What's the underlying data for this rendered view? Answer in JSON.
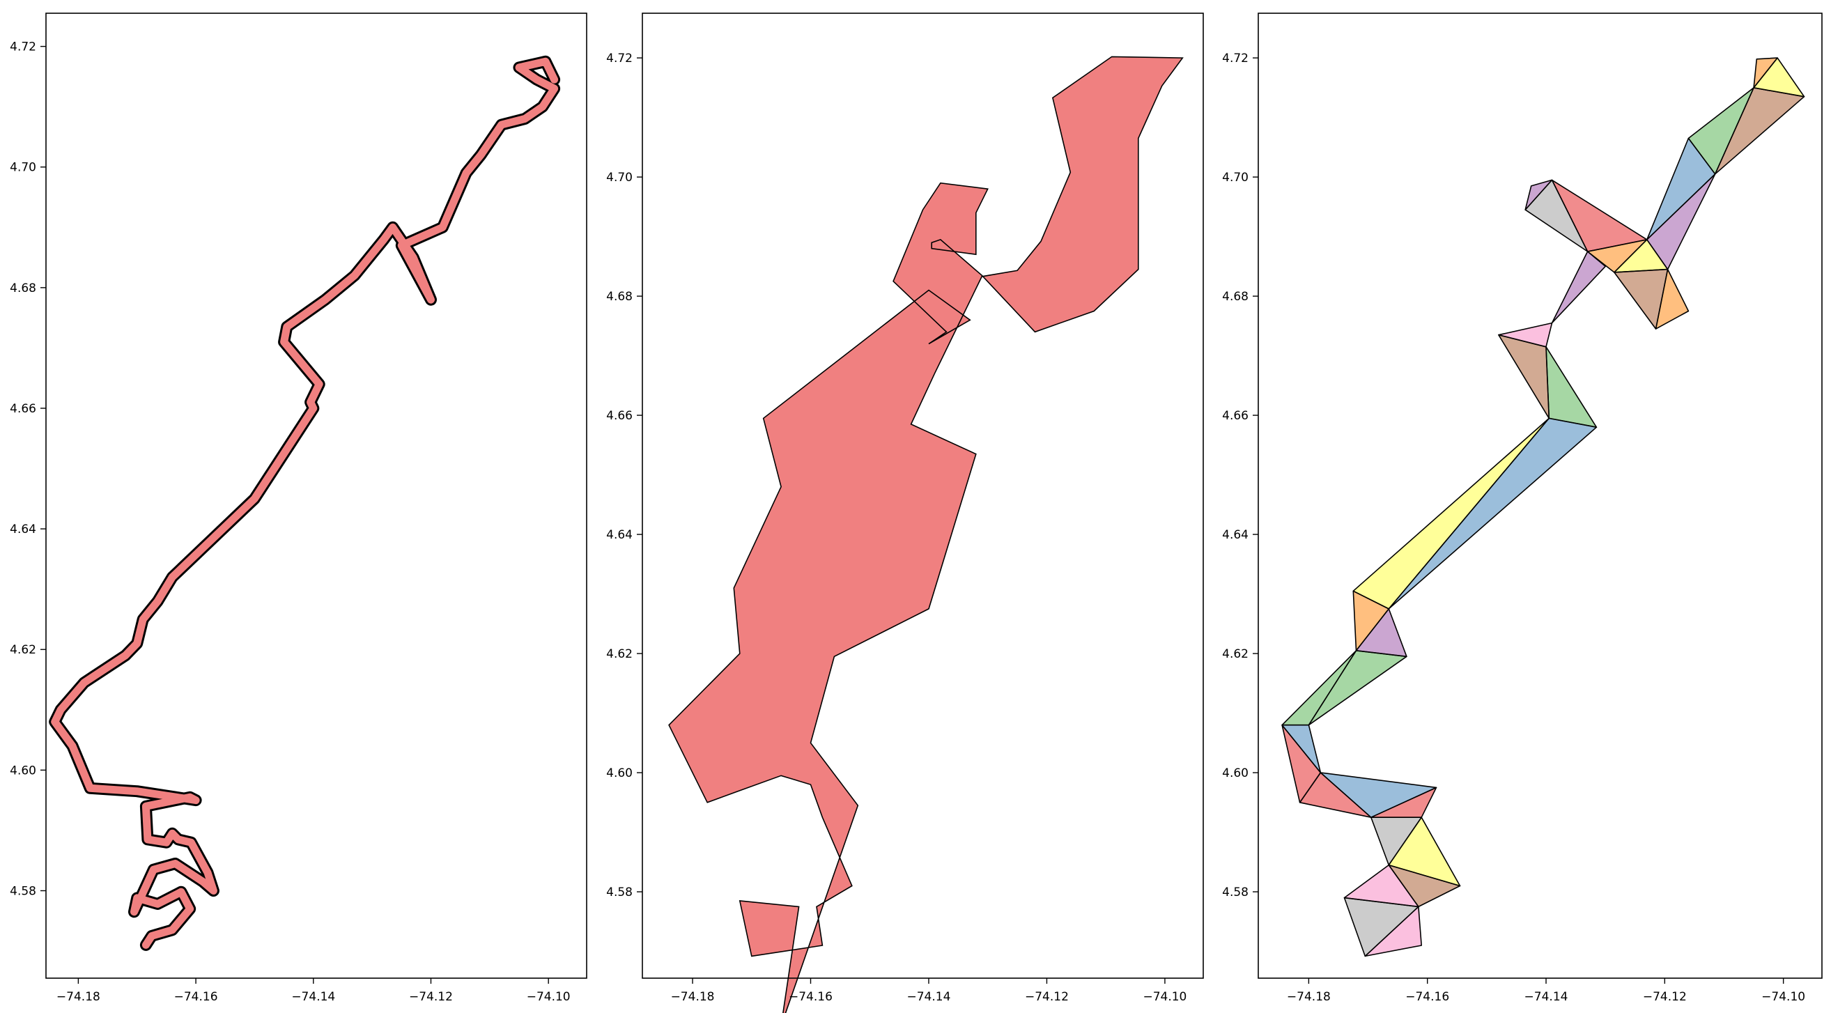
{
  "chart_data": [
    {
      "type": "line",
      "title": "",
      "xlabel": "",
      "ylabel": "",
      "xlim": [
        -74.1855,
        -74.0935
      ],
      "ylim": [
        4.5655,
        4.7255
      ],
      "xticks": [
        -74.18,
        -74.16,
        -74.14,
        -74.12,
        -74.1
      ],
      "xtick_labels": [
        "−74.18",
        "−74.16",
        "−74.14",
        "−74.12",
        "−74.10"
      ],
      "yticks": [
        4.58,
        4.6,
        4.62,
        4.64,
        4.66,
        4.68,
        4.7,
        4.72
      ],
      "ytick_labels": [
        "4.58",
        "4.60",
        "4.62",
        "4.64",
        "4.66",
        "4.68",
        "4.70",
        "4.72"
      ],
      "grid": false,
      "legend": "none",
      "colors": {
        "fill": "#f08080",
        "edge": "#000000"
      },
      "series": [
        {
          "x": [
            -74.1685,
            -74.1675,
            -74.164,
            -74.161,
            -74.1625,
            -74.1665,
            -74.17,
            -74.1705,
            -74.1672,
            -74.1635,
            -74.1588,
            -74.157,
            -74.158,
            -74.1608,
            -74.163,
            -74.164,
            -74.165,
            -74.1682,
            -74.1685,
            -74.161,
            -74.16,
            -74.17,
            -74.178,
            -74.181,
            -74.184,
            -74.183,
            -74.179,
            -74.172,
            -74.17,
            -74.169,
            -74.1665,
            -74.164,
            -74.15,
            -74.14,
            -74.1405,
            -74.139,
            -74.145,
            -74.1445,
            -74.138,
            -74.133,
            -74.128,
            -74.1265,
            -74.123,
            -74.12,
            -74.125,
            -74.118,
            -74.114,
            -74.1115,
            -74.108,
            -74.104,
            -74.101,
            -74.099,
            -74.102,
            -74.105,
            -74.1005,
            -74.099
          ],
          "y": [
            4.571,
            4.5725,
            4.5735,
            4.577,
            4.5798,
            4.5778,
            4.5788,
            4.5765,
            4.5835,
            4.5845,
            4.5815,
            4.58,
            4.583,
            4.588,
            4.5885,
            4.5895,
            4.588,
            4.5885,
            4.594,
            4.5955,
            4.595,
            4.5965,
            4.597,
            4.604,
            4.608,
            4.61,
            4.6145,
            4.619,
            4.621,
            4.625,
            4.628,
            4.632,
            4.645,
            4.66,
            4.661,
            4.664,
            4.671,
            4.6735,
            4.678,
            4.682,
            4.688,
            4.69,
            4.685,
            4.678,
            4.687,
            4.69,
            4.699,
            4.702,
            4.707,
            4.708,
            4.71,
            4.713,
            4.7145,
            4.7165,
            4.7175,
            4.7145
          ]
        }
      ]
    },
    {
      "type": "area",
      "title": "",
      "xlabel": "",
      "ylabel": "",
      "xlim": [
        -74.1885,
        -74.0935
      ],
      "ylim": [
        4.5655,
        4.7275
      ],
      "xticks": [
        -74.18,
        -74.16,
        -74.14,
        -74.12,
        -74.1
      ],
      "xtick_labels": [
        "−74.18",
        "−74.16",
        "−74.14",
        "−74.12",
        "−74.10"
      ],
      "yticks": [
        4.58,
        4.6,
        4.62,
        4.64,
        4.66,
        4.68,
        4.7,
        4.72
      ],
      "ytick_labels": [
        "4.58",
        "4.60",
        "4.62",
        "4.64",
        "4.66",
        "4.68",
        "4.70",
        "4.72"
      ],
      "grid": false,
      "legend": "none",
      "colors": {
        "fill": "#f08080",
        "edge": "#000000"
      },
      "series": [
        {
          "x": [
            -74.17,
            -74.158,
            -74.159,
            -74.153,
            -74.158,
            -74.16,
            -74.165,
            -74.172,
            -74.1775,
            -74.184,
            -74.172,
            -74.173,
            -74.165,
            -74.168,
            -74.14,
            -74.133,
            -74.14,
            -74.137,
            -74.146,
            -74.141,
            -74.138,
            -74.13,
            -74.132,
            -74.132,
            -74.1395,
            -74.1395,
            -74.138,
            -74.131,
            -74.122,
            -74.112,
            -74.1045,
            -74.1045,
            -74.1005,
            -74.097,
            -74.109,
            -74.119,
            -74.116,
            -74.121,
            -74.125,
            -74.131,
            -74.139,
            -74.143,
            -74.132,
            -74.14,
            -74.156,
            -74.16,
            -74.152,
            -74.165,
            -74.162,
            -74.172
          ],
          "y": [
            4.5692,
            4.571,
            4.5775,
            4.581,
            4.5925,
            4.598,
            4.5995,
            4.597,
            4.595,
            4.608,
            4.62,
            4.631,
            4.648,
            4.6595,
            4.681,
            4.676,
            4.672,
            4.674,
            4.6825,
            4.6945,
            4.699,
            4.698,
            4.694,
            4.687,
            4.688,
            4.689,
            4.6895,
            4.6835,
            4.674,
            4.6775,
            4.6845,
            4.7065,
            4.7153,
            4.72,
            4.7202,
            4.7133,
            4.7008,
            4.6892,
            4.6843,
            4.6833,
            4.667,
            4.6585,
            4.6535,
            4.6275,
            4.6195,
            4.605,
            4.5945,
            4.5575,
            4.5775,
            4.5785
          ]
        }
      ]
    },
    {
      "type": "area",
      "title": "",
      "xlabel": "",
      "ylabel": "",
      "xlim": [
        -74.1885,
        -74.0935
      ],
      "ylim": [
        4.5655,
        4.7275
      ],
      "xticks": [
        -74.18,
        -74.16,
        -74.14,
        -74.12,
        -74.1
      ],
      "xtick_labels": [
        "−74.18",
        "−74.16",
        "−74.14",
        "−74.12",
        "−74.10"
      ],
      "yticks": [
        4.58,
        4.6,
        4.62,
        4.64,
        4.66,
        4.68,
        4.7,
        4.72
      ],
      "ytick_labels": [
        "4.58",
        "4.60",
        "4.62",
        "4.64",
        "4.66",
        "4.68",
        "4.70",
        "4.72"
      ],
      "grid": false,
      "legend": "none",
      "palette": [
        "#e41a1c",
        "#377eb8",
        "#4daf4a",
        "#984ea3",
        "#ff7f00",
        "#ffff33",
        "#a65628",
        "#f781bf",
        "#999999"
      ],
      "triangles": [
        {
          "color": "#f781bf",
          "x": [
            -74.1705,
            -74.161,
            -74.1615
          ],
          "y": [
            4.5692,
            4.571,
            4.5775
          ]
        },
        {
          "color": "#999999",
          "x": [
            -74.1705,
            -74.1615,
            -74.174
          ],
          "y": [
            4.5692,
            4.5775,
            4.579
          ]
        },
        {
          "color": "#f781bf",
          "x": [
            -74.174,
            -74.1615,
            -74.1665
          ],
          "y": [
            4.579,
            4.5775,
            4.5845
          ]
        },
        {
          "color": "#a65628",
          "x": [
            -74.1665,
            -74.1615,
            -74.1545
          ],
          "y": [
            4.5845,
            4.5775,
            4.581
          ]
        },
        {
          "color": "#ffff33",
          "x": [
            -74.1665,
            -74.1545,
            -74.161
          ],
          "y": [
            4.5845,
            4.581,
            4.5925
          ]
        },
        {
          "color": "#999999",
          "x": [
            -74.1665,
            -74.161,
            -74.1695
          ],
          "y": [
            4.5845,
            4.5925,
            4.5925
          ]
        },
        {
          "color": "#e41a1c",
          "x": [
            -74.1695,
            -74.161,
            -74.1585
          ],
          "y": [
            4.5925,
            4.5925,
            4.5975
          ]
        },
        {
          "color": "#377eb8",
          "x": [
            -74.1695,
            -74.1585,
            -74.178
          ],
          "y": [
            4.5925,
            4.5975,
            4.6
          ]
        },
        {
          "color": "#e41a1c",
          "x": [
            -74.178,
            -74.1695,
            -74.1815
          ],
          "y": [
            4.6,
            4.5925,
            4.595
          ]
        },
        {
          "color": "#e41a1c",
          "x": [
            -74.1845,
            -74.178,
            -74.1815
          ],
          "y": [
            4.608,
            4.6,
            4.595
          ]
        },
        {
          "color": "#377eb8",
          "x": [
            -74.1845,
            -74.18,
            -74.178
          ],
          "y": [
            4.608,
            4.608,
            4.6
          ]
        },
        {
          "color": "#4daf4a",
          "x": [
            -74.1845,
            -74.172,
            -74.18
          ],
          "y": [
            4.608,
            4.6205,
            4.608
          ]
        },
        {
          "color": "#4daf4a",
          "x": [
            -74.18,
            -74.172,
            -74.1635
          ],
          "y": [
            4.608,
            4.6205,
            4.6195
          ]
        },
        {
          "color": "#984ea3",
          "x": [
            -74.172,
            -74.1635,
            -74.1665
          ],
          "y": [
            4.6205,
            4.6195,
            4.6275
          ]
        },
        {
          "color": "#ff7f00",
          "x": [
            -74.172,
            -74.1665,
            -74.1725
          ],
          "y": [
            4.6205,
            4.6275,
            4.6305
          ]
        },
        {
          "color": "#ffff33",
          "x": [
            -74.1725,
            -74.1665,
            -74.1395
          ],
          "y": [
            4.6305,
            4.6275,
            4.6595
          ]
        },
        {
          "color": "#377eb8",
          "x": [
            -74.1665,
            -74.1315,
            -74.1395
          ],
          "y": [
            4.6275,
            4.658,
            4.6595
          ]
        },
        {
          "color": "#4daf4a",
          "x": [
            -74.1395,
            -74.1315,
            -74.14
          ],
          "y": [
            4.6595,
            4.658,
            4.6715
          ]
        },
        {
          "color": "#a65628",
          "x": [
            -74.1395,
            -74.14,
            -74.148
          ],
          "y": [
            4.6595,
            4.6715,
            4.6735
          ]
        },
        {
          "color": "#f781bf",
          "x": [
            -74.148,
            -74.14,
            -74.139
          ],
          "y": [
            4.6735,
            4.6715,
            4.6755
          ]
        },
        {
          "color": "#984ea3",
          "x": [
            -74.139,
            -74.13,
            -74.133
          ],
          "y": [
            4.6755,
            4.685,
            4.6875
          ]
        },
        {
          "color": "#ff7f00",
          "x": [
            -74.133,
            -74.1285,
            -74.123
          ],
          "y": [
            4.6875,
            4.684,
            4.6895
          ]
        },
        {
          "color": "#ffff33",
          "x": [
            -74.1285,
            -74.123,
            -74.1195
          ],
          "y": [
            4.684,
            4.6895,
            4.6845
          ]
        },
        {
          "color": "#a65628",
          "x": [
            -74.1285,
            -74.1195,
            -74.1215
          ],
          "y": [
            4.684,
            4.6845,
            4.6745
          ]
        },
        {
          "color": "#ff7f00",
          "x": [
            -74.1215,
            -74.1195,
            -74.116
          ],
          "y": [
            4.6745,
            4.6845,
            4.6775
          ]
        },
        {
          "color": "#e41a1c",
          "x": [
            -74.133,
            -74.123,
            -74.139
          ],
          "y": [
            4.6875,
            4.6895,
            4.6995
          ]
        },
        {
          "color": "#999999",
          "x": [
            -74.133,
            -74.139,
            -74.1435
          ],
          "y": [
            4.6875,
            4.6995,
            4.6945
          ]
        },
        {
          "color": "#984ea3",
          "x": [
            -74.1435,
            -74.139,
            -74.1425
          ],
          "y": [
            4.6945,
            4.6995,
            4.6985
          ]
        },
        {
          "color": "#984ea3",
          "x": [
            -74.123,
            -74.1195,
            -74.1115
          ],
          "y": [
            4.6895,
            4.6845,
            4.7005
          ]
        },
        {
          "color": "#377eb8",
          "x": [
            -74.123,
            -74.1115,
            -74.116
          ],
          "y": [
            4.6895,
            4.7005,
            4.7065
          ]
        },
        {
          "color": "#4daf4a",
          "x": [
            -74.116,
            -74.1115,
            -74.105
          ],
          "y": [
            4.7065,
            4.7005,
            4.715
          ]
        },
        {
          "color": "#a65628",
          "x": [
            -74.1115,
            -74.105,
            -74.0965
          ],
          "y": [
            4.7005,
            4.715,
            4.7135
          ]
        },
        {
          "color": "#ffff33",
          "x": [
            -74.105,
            -74.0965,
            -74.101
          ],
          "y": [
            4.715,
            4.7135,
            4.72
          ]
        },
        {
          "color": "#ff7f00",
          "x": [
            -74.105,
            -74.101,
            -74.1045
          ],
          "y": [
            4.715,
            4.72,
            4.7198
          ]
        }
      ]
    }
  ]
}
